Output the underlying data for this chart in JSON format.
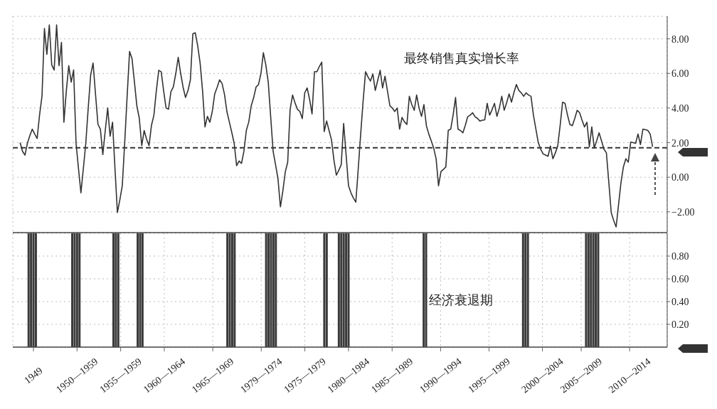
{
  "chart_data": [
    {
      "type": "line",
      "categories": [
        null,
        null,
        null,
        null,
        null,
        null,
        null,
        null,
        null,
        null,
        null,
        null,
        null,
        null,
        null,
        null,
        null,
        null,
        null,
        null,
        null,
        null,
        null,
        null,
        null,
        null,
        null,
        null,
        null,
        null,
        null,
        null,
        null,
        null,
        null,
        null,
        null,
        null,
        null,
        null,
        null,
        null,
        null,
        null,
        null,
        null,
        null,
        null,
        null,
        null,
        null,
        null,
        null,
        null,
        null,
        null,
        null,
        null,
        null,
        null,
        null,
        null,
        null,
        null,
        null,
        null,
        null,
        null,
        null,
        null,
        null,
        null,
        null,
        null,
        null,
        null,
        null,
        null,
        null,
        null,
        null,
        null,
        null,
        null,
        null,
        null,
        null,
        null,
        null,
        null,
        null,
        null,
        null,
        null,
        null,
        null,
        null,
        null,
        null,
        null,
        null,
        null,
        null,
        null,
        null,
        null,
        null,
        null,
        null,
        null,
        null,
        null,
        null,
        null,
        null,
        null,
        null,
        null,
        null,
        null,
        null,
        null,
        null,
        null,
        null,
        null,
        null,
        null,
        null,
        null,
        null,
        null,
        null,
        null,
        null,
        null,
        null,
        null,
        null,
        null,
        null,
        null,
        null,
        null,
        null,
        null,
        null,
        null,
        null,
        null,
        null,
        null,
        null,
        null,
        null,
        null,
        null,
        null,
        null,
        null,
        null,
        null,
        null,
        null,
        null,
        null,
        null,
        null,
        null,
        null,
        null,
        null,
        null,
        null,
        null,
        null,
        null,
        null,
        null,
        null,
        null,
        null,
        null,
        null,
        null,
        null,
        null,
        null,
        null,
        null,
        null,
        null,
        null,
        null,
        null,
        null,
        null,
        null,
        null,
        null,
        null,
        null,
        null,
        null,
        null,
        null,
        null,
        null,
        null,
        null,
        null,
        null,
        null,
        null,
        null,
        null,
        null,
        null,
        null,
        null,
        null,
        null,
        null,
        null,
        null,
        null,
        null,
        null,
        null,
        null,
        null,
        null,
        null,
        null,
        null,
        null,
        null,
        null,
        null,
        null,
        null,
        null,
        null,
        null,
        null,
        null,
        null,
        null,
        null,
        null,
        null,
        null,
        null,
        null,
        null,
        null,
        null,
        null,
        null,
        null,
        null,
        null,
        null,
        null,
        null,
        null,
        null,
        null,
        null,
        null
      ],
      "series": [
        {
          "name": "最终销售真实增长率",
          "color": "#333333",
          "values": [
            null,
            null,
            null,
            2.0,
            1.5,
            1.28,
            1.96,
            2.4,
            2.78,
            2.5,
            2.24,
            3.6,
            4.69,
            8.6,
            7.1,
            8.8,
            6.5,
            6.2,
            8.8,
            6.45,
            7.8,
            3.18,
            5.0,
            6.45,
            5.5,
            6.2,
            1.96,
            0.5,
            -0.9,
            0.5,
            1.96,
            4.0,
            5.9,
            6.6,
            4.8,
            3.06,
            2.78,
            1.31,
            2.7,
            4.0,
            2.37,
            3.18,
            0.5,
            -2.04,
            -1.3,
            -0.49,
            2.0,
            4.69,
            7.27,
            6.86,
            5.5,
            4.12,
            3.4,
            1.83,
            2.7,
            2.2,
            1.83,
            3.0,
            3.59,
            5.0,
            6.18,
            6.1,
            5.0,
            4.0,
            3.93,
            4.95,
            5.22,
            6.0,
            6.93,
            6.0,
            5.2,
            4.61,
            5.0,
            5.63,
            8.29,
            8.35,
            7.6,
            6.6,
            5.0,
            2.91,
            3.52,
            3.18,
            3.8,
            4.82,
            5.2,
            5.63,
            5.43,
            4.8,
            3.8,
            3.2,
            2.6,
            1.96,
            0.67,
            0.94,
            0.8,
            1.5,
            2.71,
            3.2,
            4.13,
            4.6,
            5.22,
            5.36,
            6.0,
            7.2,
            6.5,
            5.5,
            3.5,
            1.5,
            0.73,
            -0.08,
            -1.71,
            -0.8,
            0.3,
            0.87,
            3.93,
            4.75,
            4.3,
            3.93,
            3.8,
            3.39,
            4.88,
            5.16,
            4.5,
            3.66,
            6.1,
            6.1,
            6.4,
            6.65,
            2.64,
            3.25,
            2.7,
            2.16,
            1.0,
            0.12,
            0.4,
            0.73,
            3.11,
            1.3,
            -0.49,
            -0.9,
            -1.2,
            -1.44,
            0.5,
            2.5,
            4.4,
            6.1,
            5.8,
            5.56,
            5.97,
            5.02,
            5.6,
            6.18,
            5.16,
            5.84,
            5.0,
            4.13,
            4.0,
            3.8,
            4.0,
            2.78,
            3.46,
            3.2,
            3.05,
            4.68,
            4.2,
            3.87,
            4.75,
            4.0,
            3.52,
            4.2,
            2.98,
            2.5,
            2.1,
            1.69,
            1.07,
            -0.49,
            0.33,
            0.45,
            0.6,
            2.71,
            2.78,
            3.6,
            4.61,
            2.78,
            2.7,
            2.57,
            3.0,
            3.5,
            3.59,
            3.73,
            3.5,
            3.4,
            3.25,
            3.3,
            3.32,
            4.27,
            3.59,
            3.9,
            4.27,
            3.52,
            4.0,
            4.68,
            3.87,
            4.3,
            4.82,
            4.34,
            4.9,
            5.36,
            5.02,
            4.88,
            4.68,
            4.88,
            4.75,
            4.68,
            3.6,
            2.8,
            2.0,
            1.62,
            1.35,
            1.28,
            1.21,
            1.8,
            1.07,
            1.4,
            1.82,
            3.0,
            4.34,
            4.27,
            3.6,
            3.05,
            2.98,
            3.4,
            3.87,
            3.73,
            3.3,
            2.91,
            3.18,
            1.76,
            2.91,
            1.69,
            2.1,
            2.57,
            2.1,
            1.62,
            1.41,
            -0.3,
            -2.05,
            -2.5,
            -2.87,
            -1.58,
            -0.3,
            0.6,
            1.07,
            0.87,
            2.03,
            2.0,
            1.96,
            2.5,
            1.89,
            2.78,
            2.75,
            2.71,
            2.5,
            1.76,
            null,
            null,
            null,
            null,
            null,
            null
          ]
        }
      ],
      "ylim": [
        -3.2,
        9.3
      ],
      "yticks": [
        {
          "value": -2,
          "label": "−2.00"
        },
        {
          "value": 0,
          "label": "0.00"
        },
        {
          "value": 2,
          "label": "2.00"
        },
        {
          "value": 4,
          "label": "4.00"
        },
        {
          "value": 6,
          "label": "6.00"
        },
        {
          "value": 8,
          "label": "8.00"
        }
      ],
      "tick_labels": "y",
      "grid": true,
      "legend": false,
      "marker": "none",
      "line_style": "solid",
      "ref_lines": [
        {
          "axis": "y",
          "value": 1.7,
          "color": "#333333",
          "line_style": "dashed"
        }
      ]
    },
    {
      "type": "bar",
      "categories": [
        null,
        null,
        null,
        null,
        null,
        null,
        null,
        null,
        "1949",
        null,
        null,
        null,
        null,
        null,
        null,
        null,
        null,
        null,
        null,
        null,
        null,
        null,
        null,
        null,
        null,
        null,
        "1950—1959",
        null,
        null,
        null,
        null,
        null,
        null,
        null,
        null,
        null,
        null,
        null,
        null,
        null,
        null,
        null,
        null,
        null,
        "1955—1959",
        null,
        null,
        null,
        null,
        null,
        null,
        null,
        null,
        null,
        null,
        null,
        null,
        null,
        null,
        null,
        null,
        null,
        "1960—1964",
        null,
        null,
        null,
        null,
        null,
        null,
        null,
        null,
        null,
        null,
        null,
        null,
        null,
        null,
        null,
        null,
        null,
        null,
        null,
        "1965—1969",
        null,
        null,
        null,
        null,
        null,
        null,
        null,
        null,
        null,
        null,
        null,
        null,
        null,
        null,
        null,
        null,
        null,
        null,
        null,
        "1979—1974",
        null,
        null,
        null,
        null,
        null,
        null,
        null,
        null,
        null,
        null,
        null,
        null,
        null,
        null,
        null,
        null,
        null,
        "1975—1979",
        null,
        null,
        null,
        null,
        null,
        null,
        null,
        null,
        null,
        null,
        null,
        null,
        null,
        null,
        null,
        null,
        null,
        "1980—1984",
        null,
        null,
        null,
        null,
        null,
        null,
        null,
        null,
        null,
        null,
        null,
        null,
        null,
        null,
        null,
        null,
        null,
        "1985—1989",
        null,
        null,
        null,
        null,
        null,
        null,
        null,
        null,
        null,
        null,
        null,
        null,
        null,
        null,
        null,
        null,
        null,
        null,
        null,
        "1990—1994",
        null,
        null,
        null,
        null,
        null,
        null,
        null,
        null,
        null,
        null,
        null,
        null,
        null,
        null,
        null,
        null,
        null,
        null,
        null,
        "1995—1999",
        null,
        null,
        null,
        null,
        null,
        null,
        null,
        null,
        null,
        null,
        null,
        null,
        null,
        null,
        null,
        null,
        null,
        null,
        null,
        null,
        null,
        "2000—2004",
        null,
        null,
        null,
        null,
        null,
        null,
        null,
        null,
        null,
        null,
        null,
        null,
        null,
        null,
        null,
        "2005—2009",
        null,
        null,
        null,
        null,
        null,
        null,
        null,
        null,
        null,
        null,
        null,
        null,
        null,
        null,
        null,
        null,
        null,
        null,
        null,
        "2010—2014",
        null,
        null,
        null,
        null,
        null,
        null,
        null,
        null,
        null,
        null,
        null,
        null,
        null,
        null,
        null
      ],
      "series": [
        {
          "name": "经济衰退期",
          "color": "#3a3a3a",
          "values": [
            null,
            null,
            null,
            null,
            null,
            null,
            1,
            1,
            1,
            1,
            null,
            null,
            null,
            null,
            null,
            null,
            null,
            null,
            null,
            null,
            null,
            null,
            null,
            null,
            1,
            1,
            1,
            1,
            null,
            null,
            null,
            null,
            null,
            null,
            null,
            null,
            null,
            null,
            null,
            null,
            null,
            1,
            1,
            1,
            null,
            null,
            null,
            null,
            null,
            null,
            null,
            1,
            1,
            1,
            null,
            null,
            null,
            null,
            null,
            null,
            null,
            null,
            null,
            null,
            null,
            null,
            null,
            null,
            null,
            null,
            null,
            null,
            null,
            null,
            null,
            null,
            null,
            null,
            null,
            null,
            null,
            null,
            null,
            null,
            null,
            null,
            null,
            null,
            1,
            1,
            1,
            1,
            null,
            null,
            null,
            null,
            null,
            null,
            null,
            null,
            null,
            null,
            null,
            null,
            1,
            1,
            1,
            1,
            1,
            null,
            null,
            null,
            null,
            null,
            null,
            null,
            null,
            null,
            null,
            null,
            null,
            null,
            null,
            null,
            null,
            null,
            null,
            null,
            1,
            1,
            null,
            null,
            null,
            null,
            1,
            1,
            1,
            1,
            1,
            null,
            null,
            null,
            null,
            null,
            null,
            null,
            null,
            null,
            null,
            null,
            null,
            null,
            null,
            null,
            null,
            null,
            null,
            null,
            null,
            null,
            null,
            null,
            null,
            null,
            null,
            null,
            null,
            null,
            null,
            1,
            1,
            null,
            null,
            null,
            null,
            null,
            null,
            null,
            null,
            null,
            null,
            null,
            null,
            null,
            null,
            null,
            null,
            null,
            null,
            null,
            null,
            null,
            null,
            null,
            null,
            null,
            null,
            null,
            null,
            null,
            null,
            null,
            null,
            null,
            null,
            null,
            null,
            null,
            null,
            null,
            1,
            1,
            1,
            null,
            null,
            null,
            null,
            null,
            null,
            null,
            null,
            null,
            null,
            null,
            null,
            null,
            null,
            null,
            null,
            null,
            null,
            null,
            null,
            null,
            null,
            null,
            1,
            1,
            1,
            1,
            1,
            1,
            null,
            null,
            null,
            null,
            null,
            null,
            null,
            null,
            null,
            null,
            null,
            null,
            null,
            null,
            null,
            null,
            null,
            null,
            null,
            null,
            null,
            null,
            null,
            null,
            null,
            null,
            null,
            null
          ]
        }
      ],
      "ylim": [
        0,
        1
      ],
      "yticks": [
        {
          "value": 0.2,
          "label": "0.20"
        },
        {
          "value": 0.4,
          "label": "0.40"
        },
        {
          "value": 0.6,
          "label": "0.60"
        },
        {
          "value": 0.8,
          "label": "0.80"
        }
      ],
      "grid": true,
      "legend": false
    }
  ]
}
